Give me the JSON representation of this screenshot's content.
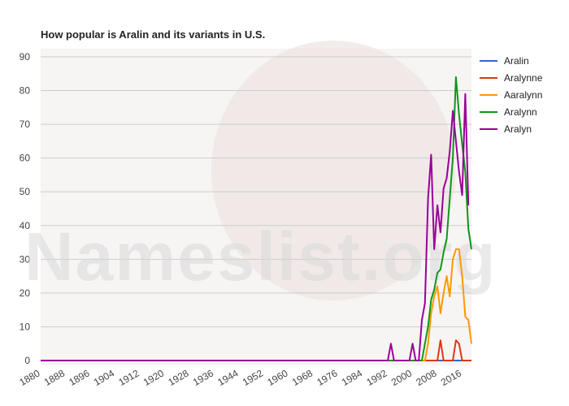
{
  "watermark": "Nameslist.org",
  "chart_data": {
    "type": "line",
    "title": "How popular is Aralin and its variants in U.S.",
    "xlabel": "",
    "ylabel": "",
    "xlim": [
      1880,
      2019
    ],
    "ylim": [
      0,
      90
    ],
    "y_ticks": [
      0,
      10,
      20,
      30,
      40,
      50,
      60,
      70,
      80,
      90
    ],
    "x_ticks": [
      1880,
      1888,
      1896,
      1904,
      1912,
      1920,
      1928,
      1936,
      1944,
      1952,
      1960,
      1968,
      1976,
      1984,
      1992,
      2000,
      2008,
      2016
    ],
    "grid": true,
    "legend_position": "right",
    "series": [
      {
        "name": "Aralin",
        "color": "#3366cc",
        "points": [
          [
            1880,
            0
          ],
          [
            2019,
            0
          ]
        ]
      },
      {
        "name": "Aralynne",
        "color": "#dc3912",
        "points": [
          [
            1880,
            0
          ],
          [
            2008,
            0
          ],
          [
            2009,
            6
          ],
          [
            2010,
            0
          ],
          [
            2013,
            0
          ],
          [
            2014,
            6
          ],
          [
            2015,
            5
          ],
          [
            2016,
            0
          ],
          [
            2019,
            0
          ]
        ]
      },
      {
        "name": "Aaralynn",
        "color": "#ff9900",
        "points": [
          [
            1880,
            0
          ],
          [
            2004,
            0
          ],
          [
            2005,
            5
          ],
          [
            2006,
            14
          ],
          [
            2007,
            19
          ],
          [
            2008,
            22
          ],
          [
            2009,
            14
          ],
          [
            2010,
            20
          ],
          [
            2011,
            25
          ],
          [
            2012,
            19
          ],
          [
            2013,
            30
          ],
          [
            2014,
            33
          ],
          [
            2015,
            33
          ],
          [
            2016,
            25
          ],
          [
            2017,
            13
          ],
          [
            2018,
            12
          ],
          [
            2019,
            5
          ]
        ]
      },
      {
        "name": "Aralynn",
        "color": "#109618",
        "points": [
          [
            1880,
            0
          ],
          [
            2003,
            0
          ],
          [
            2004,
            5
          ],
          [
            2005,
            10
          ],
          [
            2006,
            18
          ],
          [
            2007,
            21
          ],
          [
            2008,
            26
          ],
          [
            2009,
            27
          ],
          [
            2010,
            32
          ],
          [
            2011,
            36
          ],
          [
            2012,
            48
          ],
          [
            2013,
            60
          ],
          [
            2014,
            84
          ],
          [
            2015,
            73
          ],
          [
            2016,
            64
          ],
          [
            2017,
            56
          ],
          [
            2018,
            39
          ],
          [
            2019,
            33
          ]
        ]
      },
      {
        "name": "Aralyn",
        "color": "#990099",
        "points": [
          [
            1880,
            0
          ],
          [
            1992,
            0
          ],
          [
            1993,
            5
          ],
          [
            1994,
            0
          ],
          [
            1999,
            0
          ],
          [
            2000,
            5
          ],
          [
            2001,
            0
          ],
          [
            2002,
            0
          ],
          [
            2003,
            12
          ],
          [
            2004,
            17
          ],
          [
            2005,
            48
          ],
          [
            2006,
            61
          ],
          [
            2007,
            33
          ],
          [
            2008,
            46
          ],
          [
            2009,
            38
          ],
          [
            2010,
            51
          ],
          [
            2011,
            54
          ],
          [
            2012,
            62
          ],
          [
            2013,
            74
          ],
          [
            2014,
            65
          ],
          [
            2015,
            56
          ],
          [
            2016,
            49
          ],
          [
            2017,
            79
          ],
          [
            2018,
            46
          ]
        ]
      }
    ]
  }
}
